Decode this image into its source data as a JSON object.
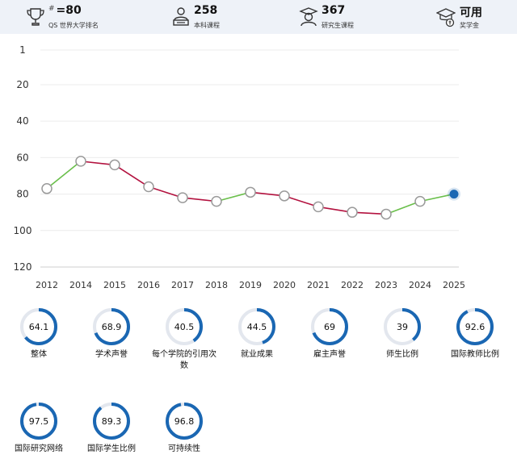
{
  "stats": [
    {
      "prefix": "#",
      "value": "=80",
      "label": "QS 世界大学排名",
      "icon": "trophy-icon"
    },
    {
      "prefix": "",
      "value": "258",
      "label": "本科课程",
      "icon": "student-desk-icon"
    },
    {
      "prefix": "",
      "value": "367",
      "label": "研究生课程",
      "icon": "graduate-icon"
    },
    {
      "prefix": "",
      "value": "可用",
      "label": "奖学金",
      "icon": "scholarship-cap-icon"
    }
  ],
  "chart_data": {
    "type": "line",
    "y_inverted": true,
    "ylim": [
      1,
      120
    ],
    "y_ticks": [
      1,
      20,
      40,
      60,
      80,
      100,
      120
    ],
    "categories": [
      "2012",
      "2014",
      "2015",
      "2016",
      "2017",
      "2018",
      "2019",
      "2020",
      "2021",
      "2022",
      "2023",
      "2024",
      "2025"
    ],
    "series": [
      {
        "values": [
          77,
          62,
          64,
          76,
          82,
          84,
          79,
          81,
          87,
          90,
          91,
          84,
          80
        ]
      }
    ],
    "colors": {
      "up": "#6abf4b",
      "down": "#b3123f",
      "current": "#1a67b3",
      "point_fill": "#ffffff",
      "point_stroke": "#9a9a9a"
    }
  },
  "metrics": [
    {
      "value": "64.1",
      "label": "整体"
    },
    {
      "value": "68.9",
      "label": "学术声誉"
    },
    {
      "value": "40.5",
      "label": "每个学院的引用次数"
    },
    {
      "value": "44.5",
      "label": "就业成果"
    },
    {
      "value": "69",
      "label": "雇主声誉"
    },
    {
      "value": "39",
      "label": "师生比例"
    },
    {
      "value": "92.6",
      "label": "国际教师比例"
    },
    {
      "value": "97.5",
      "label": "国际研究网络"
    },
    {
      "value": "89.3",
      "label": "国际学生比例"
    },
    {
      "value": "96.8",
      "label": "可持续性"
    }
  ],
  "ring_colors": {
    "progress": "#1a67b3",
    "track": "#e3e7ee"
  }
}
